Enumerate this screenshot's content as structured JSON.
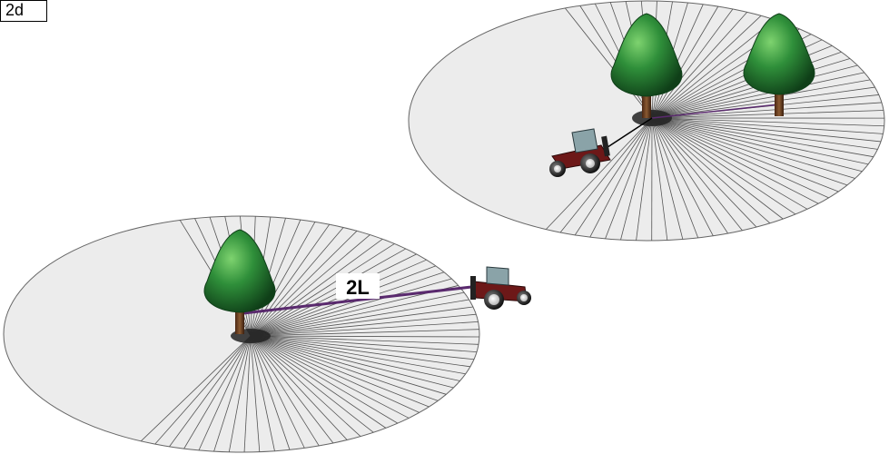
{
  "figure": {
    "label": "2d"
  },
  "scenes": {
    "upper": {
      "description_label": ""
    },
    "lower": {
      "distance_label": "2L"
    }
  },
  "colors": {
    "field_fill": "#ececec",
    "field_stroke": "#666666",
    "spoke_stroke": "#555555",
    "tree_foliage": "#2f8f3a",
    "tree_foliage_dark": "#16501f",
    "tree_trunk": "#6b3a1e",
    "tractor_body": "#6d1818",
    "tractor_cab": "#8aa3a8",
    "cable": "#5a2a6e"
  },
  "icons": [
    "tree-icon",
    "tractor-icon"
  ]
}
